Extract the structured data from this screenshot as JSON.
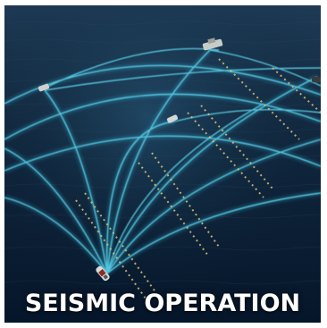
{
  "caption": {
    "text": "SEISMIC OPERATION"
  },
  "scene": {
    "description_icon": "seismic-survey-illustration",
    "colors": {
      "sea_top": "#1b3650",
      "sea_bottom": "#07182a",
      "wave_beam": "#39c6e6",
      "streamer": "#d8c27a",
      "caption_text": "#ffffff"
    }
  }
}
